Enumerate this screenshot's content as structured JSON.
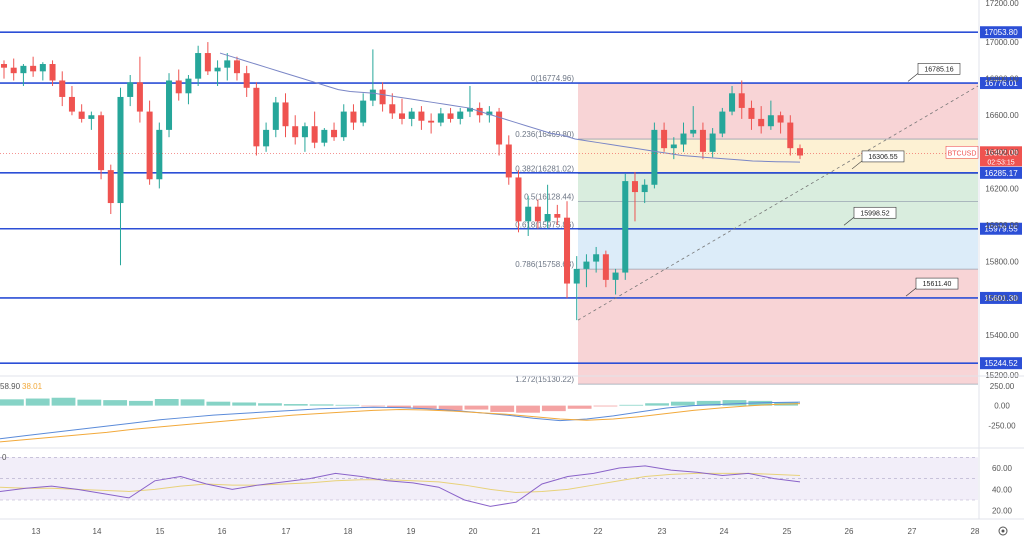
{
  "colors": {
    "up": "#26a69a",
    "down": "#ef5350",
    "level_line": "#2c4fd6",
    "ma_line": "#7a86c6",
    "macd_line": "#5b8bd9",
    "signal_line": "#f2a93b",
    "rsi_line": "#8a63c9",
    "rsi_ma": "#e8d27a",
    "fib_red": "#f6c9cc",
    "fib_green": "#cfe9d6",
    "fib_blue": "#d3e7f8"
  },
  "chart_data": {
    "type": "candlestick",
    "symbol": "BTCUSD",
    "x_ticks": [
      "13",
      "14",
      "15",
      "16",
      "17",
      "18",
      "19",
      "20",
      "21",
      "22",
      "23",
      "24",
      "25",
      "26",
      "27",
      "28"
    ],
    "y_ticks": [
      17000,
      16800,
      16600,
      16400,
      16200,
      16000,
      15800,
      15600,
      15400
    ],
    "y_range": [
      15180,
      17230
    ],
    "top_partial_label": "17200.00",
    "bottom_partial_label": "15200.00",
    "last_price": "16392.00",
    "countdown": "02:53:15",
    "levels": [
      {
        "value": 17053.8,
        "label": "17053.80"
      },
      {
        "value": 16776.01,
        "label": "16776.01"
      },
      {
        "value": 16285.17,
        "label": "16285.17"
      },
      {
        "value": 15979.55,
        "label": "15979.55"
      },
      {
        "value": 15601.3,
        "label": "15601.30"
      },
      {
        "value": 15244.52,
        "label": "15244.52"
      }
    ],
    "callouts": [
      {
        "value": 16785.16,
        "label": "16785.16"
      },
      {
        "value": 16306.55,
        "label": "16306.55"
      },
      {
        "value": 15998.52,
        "label": "15998.52"
      },
      {
        "value": 15611.4,
        "label": "15611.40"
      }
    ],
    "fib_levels": [
      {
        "ratio": "0",
        "value": 16774.96,
        "label": "0(16774.96)"
      },
      {
        "ratio": "0.236",
        "value": 16469.8,
        "label": "0.236(16469.80)"
      },
      {
        "ratio": "0.382",
        "value": 16281.02,
        "label": "0.382(16281.02)"
      },
      {
        "ratio": "0.5",
        "value": 16128.44,
        "label": "0.5(16128.44)"
      },
      {
        "ratio": "0.618",
        "value": 15975.86,
        "label": "0.618(15975.86)"
      },
      {
        "ratio": "0.786",
        "value": 15758.63,
        "label": "0.786(15758.63)"
      },
      {
        "ratio": "1.272",
        "value": 15130.22,
        "label": "1.272(15130.22)"
      }
    ],
    "candles": [
      [
        16880,
        16900,
        16800,
        16860
      ],
      [
        16860,
        16910,
        16790,
        16830
      ],
      [
        16830,
        16880,
        16760,
        16870
      ],
      [
        16870,
        16920,
        16810,
        16840
      ],
      [
        16840,
        16890,
        16790,
        16880
      ],
      [
        16880,
        16900,
        16760,
        16790
      ],
      [
        16790,
        16840,
        16650,
        16700
      ],
      [
        16700,
        16760,
        16600,
        16620
      ],
      [
        16620,
        16660,
        16560,
        16580
      ],
      [
        16580,
        16620,
        16520,
        16600
      ],
      [
        16600,
        16620,
        16250,
        16300
      ],
      [
        16300,
        16330,
        16060,
        16120
      ],
      [
        16120,
        16750,
        15780,
        16700
      ],
      [
        16700,
        16820,
        16650,
        16780
      ],
      [
        16780,
        16920,
        16560,
        16620
      ],
      [
        16620,
        16680,
        16220,
        16250
      ],
      [
        16250,
        16560,
        16200,
        16520
      ],
      [
        16520,
        16830,
        16480,
        16790
      ],
      [
        16790,
        16850,
        16680,
        16720
      ],
      [
        16720,
        16820,
        16660,
        16800
      ],
      [
        16800,
        16980,
        16760,
        16940
      ],
      [
        16940,
        17000,
        16820,
        16840
      ],
      [
        16840,
        16900,
        16760,
        16860
      ],
      [
        16860,
        16940,
        16790,
        16900
      ],
      [
        16900,
        16920,
        16790,
        16830
      ],
      [
        16830,
        16870,
        16700,
        16750
      ],
      [
        16750,
        16780,
        16380,
        16430
      ],
      [
        16430,
        16560,
        16400,
        16520
      ],
      [
        16520,
        16700,
        16480,
        16670
      ],
      [
        16670,
        16720,
        16480,
        16540
      ],
      [
        16540,
        16600,
        16440,
        16480
      ],
      [
        16480,
        16560,
        16400,
        16540
      ],
      [
        16540,
        16620,
        16420,
        16450
      ],
      [
        16450,
        16530,
        16430,
        16520
      ],
      [
        16520,
        16560,
        16460,
        16480
      ],
      [
        16480,
        16660,
        16460,
        16620
      ],
      [
        16620,
        16660,
        16520,
        16560
      ],
      [
        16560,
        16720,
        16540,
        16680
      ],
      [
        16680,
        16960,
        16650,
        16740
      ],
      [
        16740,
        16780,
        16620,
        16660
      ],
      [
        16660,
        16720,
        16580,
        16610
      ],
      [
        16610,
        16690,
        16550,
        16580
      ],
      [
        16580,
        16640,
        16540,
        16620
      ],
      [
        16620,
        16650,
        16520,
        16570
      ],
      [
        16570,
        16610,
        16500,
        16560
      ],
      [
        16560,
        16640,
        16540,
        16610
      ],
      [
        16610,
        16640,
        16560,
        16580
      ],
      [
        16580,
        16640,
        16550,
        16620
      ],
      [
        16620,
        16760,
        16590,
        16640
      ],
      [
        16640,
        16670,
        16560,
        16600
      ],
      [
        16600,
        16650,
        16560,
        16620
      ],
      [
        16620,
        16640,
        16380,
        16440
      ],
      [
        16440,
        16490,
        16220,
        16260
      ],
      [
        16260,
        16300,
        15960,
        16020
      ],
      [
        16020,
        16160,
        15940,
        16100
      ],
      [
        16100,
        16140,
        15980,
        16020
      ],
      [
        16020,
        16220,
        15980,
        16060
      ],
      [
        16060,
        16110,
        16000,
        16040
      ],
      [
        16040,
        16130,
        15600,
        15680
      ],
      [
        15680,
        15830,
        15480,
        15760
      ],
      [
        15760,
        15840,
        15660,
        15800
      ],
      [
        15800,
        15880,
        15740,
        15840
      ],
      [
        15840,
        15860,
        15660,
        15700
      ],
      [
        15700,
        15760,
        15620,
        15740
      ],
      [
        15740,
        16280,
        15700,
        16240
      ],
      [
        16240,
        16290,
        16020,
        16180
      ],
      [
        16180,
        16250,
        16120,
        16220
      ],
      [
        16220,
        16560,
        16200,
        16520
      ],
      [
        16520,
        16560,
        16400,
        16420
      ],
      [
        16420,
        16480,
        16360,
        16440
      ],
      [
        16440,
        16560,
        16400,
        16500
      ],
      [
        16500,
        16650,
        16480,
        16520
      ],
      [
        16520,
        16560,
        16360,
        16400
      ],
      [
        16400,
        16530,
        16370,
        16500
      ],
      [
        16500,
        16640,
        16480,
        16620
      ],
      [
        16620,
        16760,
        16600,
        16720
      ],
      [
        16720,
        16790,
        16580,
        16640
      ],
      [
        16640,
        16680,
        16520,
        16580
      ],
      [
        16580,
        16650,
        16500,
        16540
      ],
      [
        16540,
        16680,
        16520,
        16600
      ],
      [
        16600,
        16620,
        16500,
        16560
      ],
      [
        16560,
        16600,
        16380,
        16420
      ],
      [
        16420,
        16440,
        16360,
        16380
      ]
    ],
    "ma": [
      16940,
      16920,
      16900,
      16880,
      16860,
      16840,
      16820,
      16800,
      16780,
      16760,
      16740,
      16730,
      16725,
      16720,
      16710,
      16700,
      16690,
      16680,
      16670,
      16660,
      16650,
      16640,
      16620,
      16600,
      16580,
      16560,
      16540,
      16520,
      16500,
      16490,
      16470,
      16460,
      16450,
      16440,
      16430,
      16420,
      16410,
      16400,
      16390,
      16380,
      16375,
      16370,
      16365,
      16360,
      16355,
      16350,
      16348,
      16346,
      16345,
      16344
    ],
    "macd": {
      "label_prefix": "58.90",
      "label_value": "38.01",
      "y_ticks": [
        "250.00",
        "0.00",
        "-250.00"
      ],
      "histogram": [
        40,
        45,
        50,
        38,
        35,
        30,
        42,
        40,
        25,
        20,
        15,
        10,
        8,
        5,
        -5,
        -15,
        -20,
        -30,
        -25,
        -40,
        -45,
        -35,
        -20,
        -5,
        5,
        15,
        25,
        30,
        35,
        30,
        22
      ],
      "macd_line": [
        -420,
        -380,
        -340,
        -300,
        -260,
        -220,
        -180,
        -150,
        -120,
        -100,
        -80,
        -60,
        -40,
        -30,
        -20,
        -25,
        -40,
        -60,
        -90,
        -120,
        -160,
        -190,
        -170,
        -130,
        -80,
        -30,
        0,
        15,
        30,
        40,
        45
      ],
      "signal_line": [
        -460,
        -430,
        -400,
        -370,
        -340,
        -300,
        -270,
        -240,
        -210,
        -180,
        -150,
        -120,
        -100,
        -80,
        -60,
        -50,
        -55,
        -70,
        -90,
        -110,
        -140,
        -170,
        -185,
        -170,
        -140,
        -100,
        -60,
        -30,
        -5,
        15,
        25
      ]
    },
    "rsi": {
      "ticks": [
        "60.00",
        "40.00",
        "20.00"
      ],
      "values": [
        38,
        41,
        43,
        40,
        36,
        32,
        48,
        52,
        45,
        40,
        44,
        47,
        50,
        55,
        52,
        48,
        46,
        42,
        30,
        24,
        28,
        45,
        52,
        55,
        60,
        62,
        58,
        56,
        53,
        55,
        50,
        47
      ],
      "ma": [
        42,
        41,
        41,
        40,
        39,
        38,
        40,
        43,
        45,
        44,
        44,
        45,
        46,
        48,
        49,
        49,
        48,
        47,
        44,
        40,
        37,
        38,
        40,
        44,
        48,
        52,
        54,
        55,
        55,
        55,
        54,
        53
      ]
    }
  }
}
